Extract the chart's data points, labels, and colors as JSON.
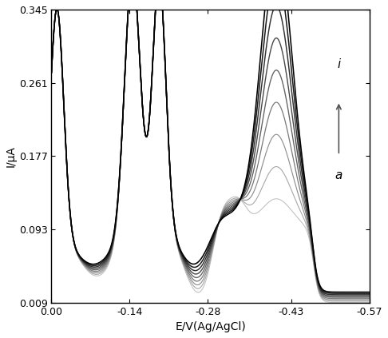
{
  "xlabel": "E/V(Ag/AgCl)",
  "ylabel": "I/μA",
  "xlim": [
    0.0,
    -0.57
  ],
  "ylim": [
    0.009,
    0.345
  ],
  "yticks": [
    0.009,
    0.093,
    0.177,
    0.261,
    0.345
  ],
  "xticks": [
    0.0,
    -0.14,
    -0.28,
    -0.43,
    -0.57
  ],
  "annotation_i": "i",
  "annotation_a": "a",
  "n_curves": 9
}
